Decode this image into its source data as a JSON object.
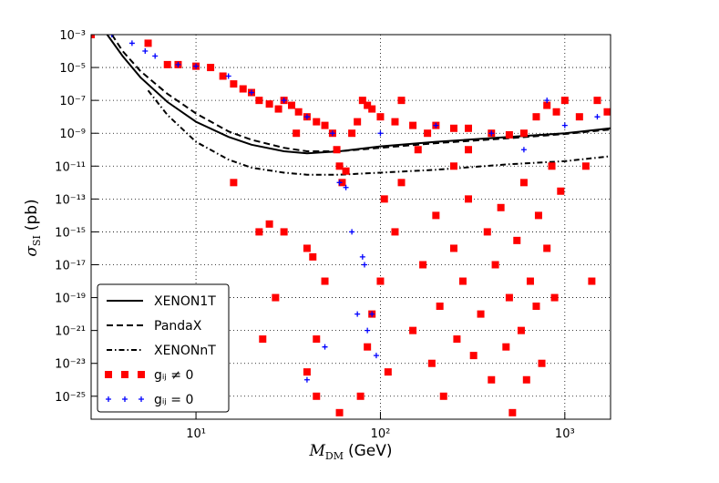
{
  "chart_data": {
    "type": "scatter",
    "xlabel": {
      "symbol": "M",
      "sub": "DM",
      "unit": "(GeV)"
    },
    "ylabel": {
      "symbol": "σ",
      "sub": "SI",
      "unit": "(pb)"
    },
    "xscale": "log",
    "yscale": "log",
    "grid": true,
    "legend": "lower left",
    "xlim": [
      2.7,
      1770
    ],
    "ylim": [
      0.001,
      4e-27
    ],
    "xticks": [
      {
        "value": 10,
        "label": "10¹"
      },
      {
        "value": 100,
        "label": "10²"
      },
      {
        "value": 1000,
        "label": "10³"
      }
    ],
    "yticks": [
      {
        "value": 0.001,
        "label": "10⁻³"
      },
      {
        "value": 1e-05,
        "label": "10⁻⁵"
      },
      {
        "value": 1e-07,
        "label": "10⁻⁷"
      },
      {
        "value": 1e-09,
        "label": "10⁻⁹"
      },
      {
        "value": 1e-11,
        "label": "10⁻¹¹"
      },
      {
        "value": 1e-13,
        "label": "10⁻¹³"
      },
      {
        "value": 1e-15,
        "label": "10⁻¹⁵"
      },
      {
        "value": 1e-17,
        "label": "10⁻¹⁷"
      },
      {
        "value": 1e-19,
        "label": "10⁻¹⁹"
      },
      {
        "value": 1e-21,
        "label": "10⁻²¹"
      },
      {
        "value": 1e-23,
        "label": "10⁻²³"
      },
      {
        "value": 1e-25,
        "label": "10⁻²⁵"
      }
    ],
    "series": [
      {
        "name": "XENON1T",
        "color": "#000000",
        "style": "line",
        "dash": "solid",
        "x": [
          3.3,
          4,
          5,
          7,
          10,
          15,
          20,
          30,
          40,
          60,
          100,
          200,
          500,
          1000,
          1770
        ],
        "values": [
          0.001,
          5e-05,
          2.5e-06,
          8e-08,
          5e-09,
          6e-10,
          2e-10,
          8e-11,
          6e-11,
          8e-11,
          1.6e-10,
          3e-10,
          6e-10,
          1e-09,
          2e-09
        ]
      },
      {
        "name": "PandaX",
        "color": "#000000",
        "style": "line",
        "dash": "dashed",
        "x": [
          3.5,
          4,
          5,
          7,
          10,
          15,
          20,
          30,
          40,
          60,
          100,
          200,
          500,
          1000,
          1770
        ],
        "values": [
          0.001,
          0.0001,
          6e-06,
          2.5e-07,
          1.6e-08,
          1.3e-09,
          4e-10,
          1.3e-10,
          8e-11,
          8e-11,
          1.3e-10,
          2.5e-10,
          5e-10,
          9e-10,
          1.7e-09
        ]
      },
      {
        "name": "XENONnT",
        "color": "#000000",
        "style": "line",
        "dash": "dashdot",
        "x": [
          5.5,
          7,
          10,
          15,
          20,
          30,
          40,
          60,
          100,
          200,
          500,
          1000,
          1770
        ],
        "values": [
          4e-07,
          1.3e-08,
          3e-10,
          2.5e-11,
          8e-12,
          4e-12,
          3e-12,
          3e-12,
          4e-12,
          6e-12,
          1.3e-11,
          2e-11,
          4e-11
        ]
      },
      {
        "name": "gᵢⱼ ≠  0",
        "color": "#ff0000",
        "style": "square",
        "x": [
          5.5,
          7,
          8,
          10,
          12,
          14,
          16,
          18,
          20,
          22,
          25,
          28,
          30,
          33,
          36,
          40,
          45,
          50,
          55,
          58,
          60,
          62,
          65,
          70,
          75,
          80,
          85,
          90,
          100,
          120,
          150,
          200,
          250,
          300,
          400,
          500,
          600,
          700,
          800,
          900,
          1000,
          1200,
          1500,
          1700,
          35,
          16,
          22,
          25,
          30,
          40,
          43,
          50,
          27,
          23,
          45,
          40,
          45,
          60,
          78,
          85,
          90,
          100,
          105,
          110,
          120,
          130,
          150,
          170,
          190,
          200,
          210,
          220,
          250,
          260,
          280,
          300,
          320,
          350,
          380,
          400,
          420,
          450,
          480,
          500,
          520,
          550,
          580,
          600,
          620,
          650,
          700,
          720,
          750,
          800,
          850,
          880,
          950,
          1300,
          1400,
          180,
          130,
          160,
          250,
          300,
          2.7
        ],
        "values": [
          0.0003,
          1.5e-05,
          1.5e-05,
          1.2e-05,
          1e-05,
          3e-06,
          1e-06,
          5e-07,
          3e-07,
          1e-07,
          6e-08,
          3e-08,
          1e-07,
          5e-08,
          2e-08,
          1e-08,
          5e-09,
          3e-09,
          1e-09,
          1e-10,
          1e-11,
          1e-12,
          5e-12,
          1e-09,
          5e-09,
          1e-07,
          5e-08,
          3e-08,
          1e-08,
          5e-09,
          3e-09,
          3e-09,
          2e-09,
          2e-09,
          1e-09,
          8e-10,
          1e-09,
          1e-08,
          5e-08,
          2e-08,
          1e-07,
          1e-08,
          1e-07,
          2e-08,
          1e-09,
          1e-12,
          1e-15,
          3e-15,
          1e-15,
          1e-16,
          3e-17,
          1e-18,
          1e-19,
          3e-22,
          3e-22,
          3e-24,
          1e-25,
          1e-26,
          1e-25,
          1e-22,
          1e-20,
          1e-18,
          1e-13,
          3e-24,
          1e-15,
          1e-12,
          1e-21,
          1e-17,
          1e-23,
          1e-14,
          3e-20,
          1e-25,
          1e-16,
          3e-22,
          1e-18,
          1e-13,
          3e-23,
          1e-20,
          1e-15,
          1e-24,
          1e-17,
          3e-14,
          1e-22,
          1e-19,
          1e-26,
          3e-16,
          1e-21,
          1e-12,
          1e-24,
          1e-18,
          3e-20,
          1e-14,
          1e-23,
          1e-16,
          1e-11,
          1e-19,
          3e-13,
          1e-11,
          1e-18,
          1e-09,
          1e-07,
          1e-10,
          1e-11,
          1e-10,
          0.001
        ]
      },
      {
        "name": "gᵢⱼ = 0",
        "color": "#0000ff",
        "style": "plus",
        "x": [
          3.5,
          4.5,
          5.3,
          6,
          8,
          10,
          15,
          20,
          30,
          40,
          55,
          60,
          65,
          70,
          80,
          82,
          90,
          85,
          75,
          50,
          40,
          95,
          100,
          200,
          400,
          800,
          1000,
          1500,
          600
        ],
        "values": [
          0.001,
          0.0003,
          0.0001,
          5e-05,
          1.5e-05,
          1.2e-05,
          3e-06,
          3e-07,
          1e-07,
          1e-08,
          1e-09,
          1e-12,
          5e-13,
          1e-15,
          3e-17,
          1e-17,
          1e-20,
          1e-21,
          1e-20,
          1e-22,
          1e-24,
          3e-23,
          1e-09,
          3e-09,
          1e-09,
          1e-07,
          3e-09,
          1e-08,
          1e-10
        ]
      }
    ]
  }
}
